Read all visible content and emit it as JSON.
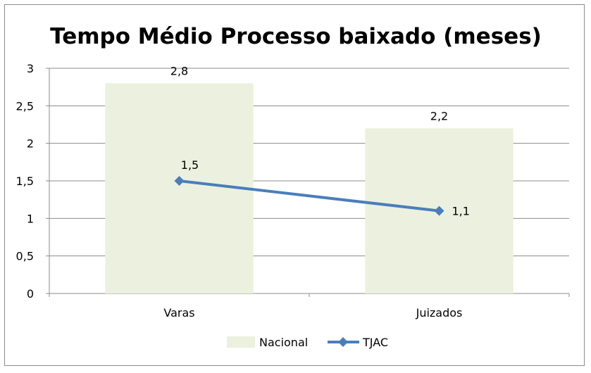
{
  "chart_data": {
    "type": "bar",
    "title": "Tempo Médio Processo baixado (meses)",
    "categories": [
      "Varas",
      "Juizados"
    ],
    "series": [
      {
        "name": "Nacional",
        "kind": "bar",
        "values": [
          2.8,
          2.2
        ],
        "labels": [
          "2,8",
          "2,2"
        ],
        "color": "#ebf1de"
      },
      {
        "name": "TJAC",
        "kind": "line",
        "values": [
          1.5,
          1.1
        ],
        "labels": [
          "1,5",
          "1,1"
        ],
        "color": "#4a7ebb"
      }
    ],
    "ylim": [
      0,
      3
    ],
    "yticks": [
      {
        "value": 0,
        "label": "0"
      },
      {
        "value": 0.5,
        "label": "0,5"
      },
      {
        "value": 1,
        "label": "1"
      },
      {
        "value": 1.5,
        "label": "1,5"
      },
      {
        "value": 2,
        "label": "2"
      },
      {
        "value": 2.5,
        "label": "2,5"
      },
      {
        "value": 3,
        "label": "3"
      }
    ],
    "grid": true,
    "legend": "bottom"
  }
}
